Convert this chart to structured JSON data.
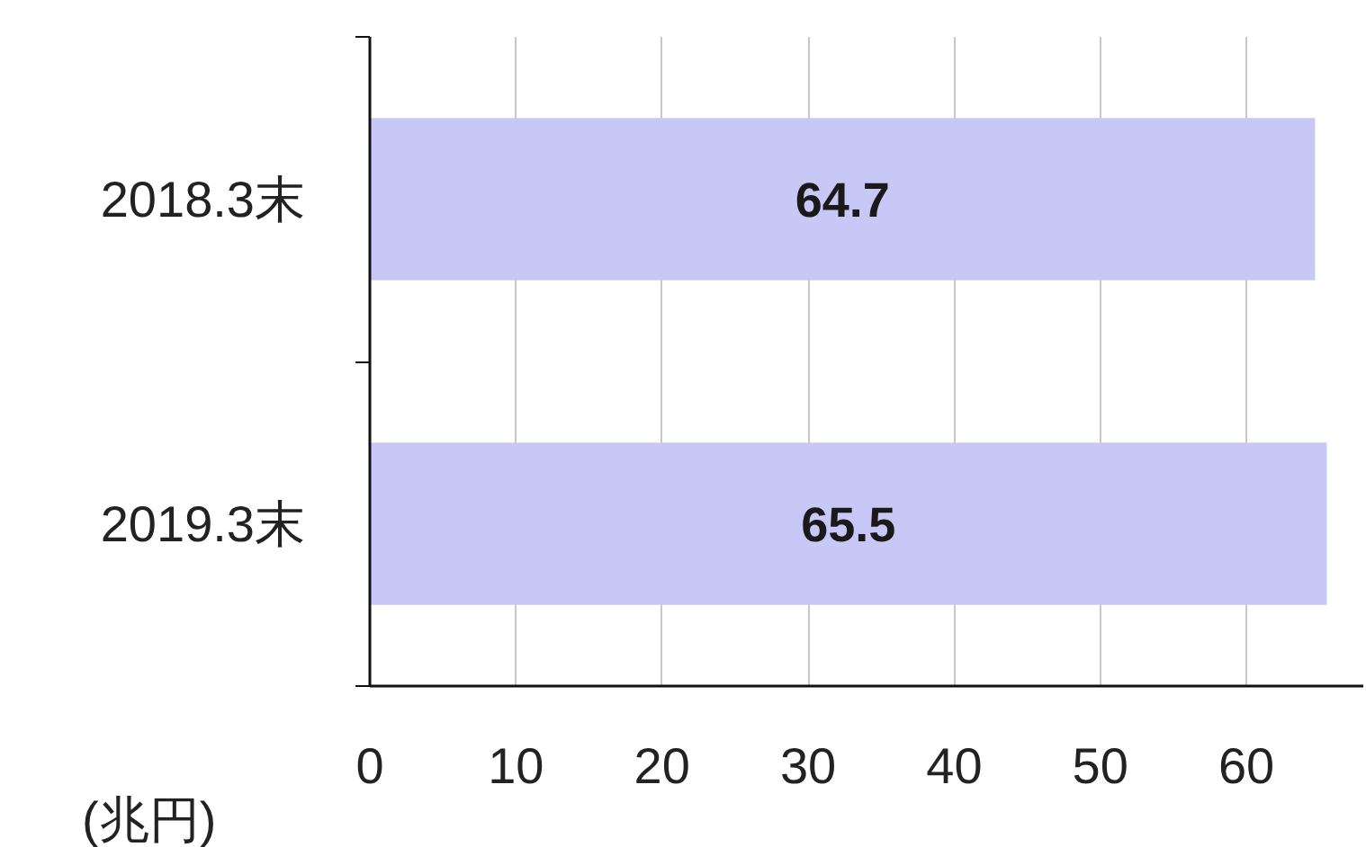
{
  "chart_data": {
    "type": "bar",
    "orientation": "horizontal",
    "xlabel": "(兆円)",
    "categories": [
      "2018.3末",
      "2019.3末"
    ],
    "values": [
      64.7,
      65.5
    ],
    "color": "#c8c8f6",
    "xlim": [
      0,
      68
    ],
    "xticks": [
      0,
      10,
      20,
      30,
      40,
      50,
      60
    ],
    "grid": "x",
    "data_labels": true
  }
}
